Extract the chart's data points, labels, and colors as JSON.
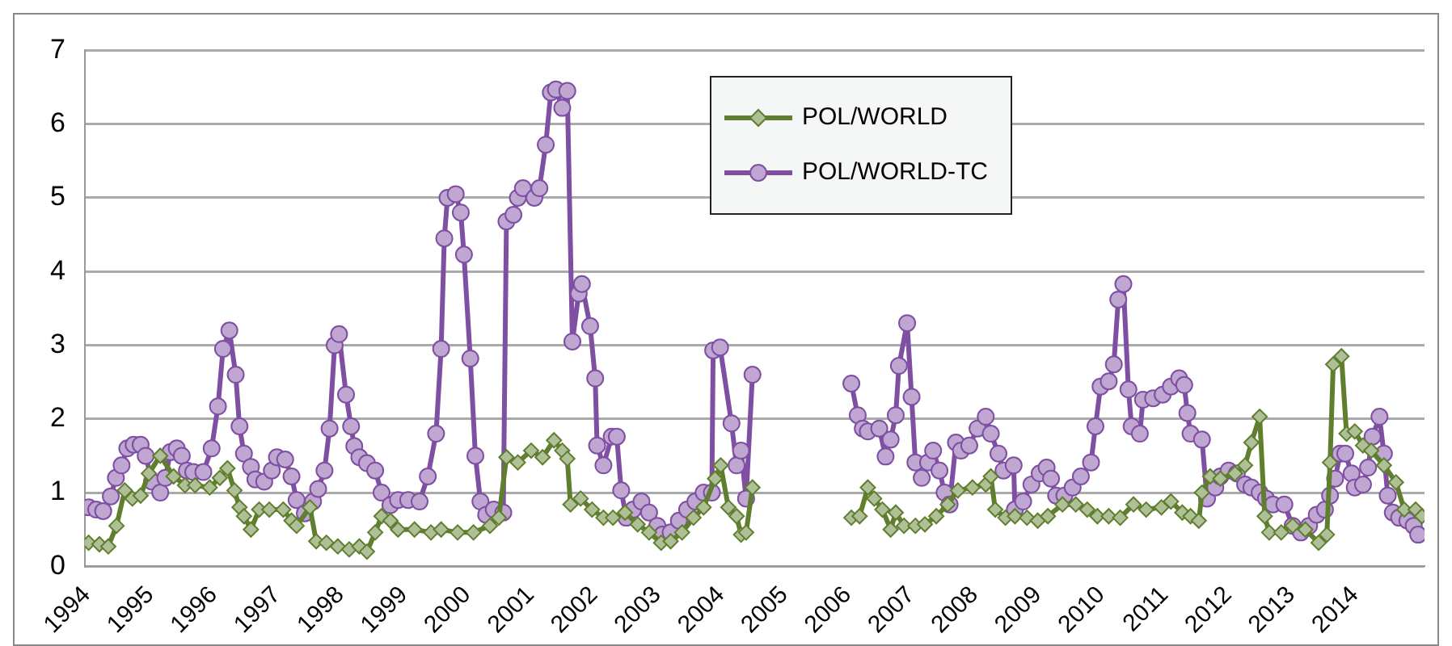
{
  "chart_data": {
    "type": "line",
    "xlim": [
      1993.97,
      2015.1
    ],
    "xticks": [
      1994,
      1995,
      1996,
      1997,
      1998,
      1999,
      2000,
      2001,
      2002,
      2003,
      2004,
      2005,
      2006,
      2007,
      2008,
      2009,
      2010,
      2011,
      2012,
      2013,
      2014
    ],
    "ylim": [
      0,
      7
    ],
    "yticks": [
      0,
      1,
      2,
      3,
      4,
      5,
      6,
      7
    ],
    "grid": "y",
    "legend": "top",
    "line_style": "solid",
    "series": [
      {
        "name": "POL/WORLD",
        "color": "#5f7f2e",
        "marker": "diamond",
        "x": [
          1994.03,
          1994.2,
          1994.34,
          1994.47,
          1994.6,
          1994.72,
          1994.85,
          1994.98,
          1995.16,
          1995.37,
          1995.55,
          1995.71,
          1995.94,
          1996.1,
          1996.22,
          1996.33,
          1996.41,
          1996.48,
          1996.59,
          1996.72,
          1996.88,
          1997.1,
          1997.23,
          1997.31,
          1997.52,
          1997.62,
          1997.78,
          1997.96,
          1998.14,
          1998.3,
          1998.42,
          1998.55,
          1998.65,
          1998.79,
          1998.91,
          1999.17,
          1999.43,
          1999.59,
          1999.85,
          2000.1,
          2000.36,
          2000.5,
          2000.62,
          2000.8,
          2001.01,
          2001.19,
          2001.37,
          2001.5,
          2001.58,
          2001.63,
          2001.79,
          2001.97,
          2002.15,
          2002.3,
          2002.49,
          2002.69,
          2002.87,
          2003.06,
          2003.21,
          2003.39,
          2003.57,
          2003.73,
          2003.91,
          2004.0,
          2004.12,
          2004.25,
          2004.32,
          2004.4,
          2004.5,
          2005.2,
          2006.06,
          2006.19,
          2006.32,
          2006.42,
          2006.55,
          2006.68,
          2006.76,
          2006.89,
          2007.07,
          2007.22,
          2007.4,
          2007.58,
          2007.74,
          2007.97,
          2008.18,
          2008.26,
          2008.33,
          2008.49,
          2008.64,
          2008.83,
          2009.0,
          2009.16,
          2009.39,
          2009.6,
          2009.78,
          2009.94,
          2010.12,
          2010.3,
          2010.51,
          2010.71,
          2010.95,
          2011.1,
          2011.28,
          2011.41,
          2011.54,
          2011.59,
          2011.72,
          2011.88,
          2012.11,
          2012.27,
          2012.37,
          2012.5,
          2012.58,
          2012.65,
          2012.84,
          2013.02,
          2013.22,
          2013.43,
          2013.56,
          2013.61,
          2013.66,
          2013.79,
          2013.87,
          2014.0,
          2014.13,
          2014.26,
          2014.46,
          2014.65,
          2014.78,
          2014.96,
          2015.06
        ],
        "values": [
          0.32,
          0.3,
          0.27,
          0.55,
          1.03,
          0.92,
          0.96,
          1.26,
          1.5,
          1.22,
          1.1,
          1.1,
          1.07,
          1.2,
          1.33,
          1.03,
          0.8,
          0.68,
          0.5,
          0.77,
          0.77,
          0.77,
          0.62,
          0.55,
          0.8,
          0.34,
          0.32,
          0.27,
          0.23,
          0.27,
          0.2,
          0.46,
          0.68,
          0.62,
          0.5,
          0.5,
          0.46,
          0.5,
          0.46,
          0.46,
          0.55,
          0.66,
          1.48,
          1.41,
          1.57,
          1.48,
          1.71,
          1.57,
          1.46,
          0.84,
          0.92,
          0.77,
          0.66,
          0.66,
          0.73,
          0.57,
          0.46,
          0.32,
          0.34,
          0.46,
          0.66,
          0.8,
          1.19,
          1.37,
          0.8,
          0.68,
          0.43,
          0.46,
          1.07,
          null,
          0.66,
          0.68,
          1.07,
          0.92,
          0.77,
          0.5,
          0.73,
          0.55,
          0.55,
          0.57,
          0.68,
          0.84,
          1.03,
          1.07,
          1.11,
          1.22,
          0.77,
          0.66,
          0.68,
          0.66,
          0.62,
          0.68,
          0.84,
          0.84,
          0.77,
          0.68,
          0.68,
          0.66,
          0.84,
          0.77,
          0.8,
          0.88,
          0.73,
          0.68,
          0.62,
          1.0,
          1.22,
          1.19,
          1.26,
          1.37,
          1.68,
          2.03,
          0.68,
          0.46,
          0.46,
          0.55,
          0.5,
          0.32,
          0.43,
          1.41,
          2.74,
          2.85,
          1.8,
          1.83,
          1.64,
          1.57,
          1.37,
          1.14,
          0.77,
          0.77,
          0.68
        ]
      },
      {
        "name": "POL/WORLD-TC",
        "color": "#7f4fa3",
        "marker": "circle",
        "x": [
          1994.03,
          1994.15,
          1994.26,
          1994.38,
          1994.46,
          1994.55,
          1994.64,
          1994.74,
          1994.85,
          1994.93,
          1995.03,
          1995.16,
          1995.24,
          1995.32,
          1995.42,
          1995.5,
          1995.58,
          1995.68,
          1995.84,
          1995.97,
          1996.07,
          1996.15,
          1996.25,
          1996.35,
          1996.41,
          1996.48,
          1996.59,
          1996.66,
          1996.8,
          1996.92,
          1997.0,
          1997.13,
          1997.23,
          1997.31,
          1997.44,
          1997.57,
          1997.65,
          1997.75,
          1997.83,
          1997.91,
          1997.98,
          1998.09,
          1998.17,
          1998.22,
          1998.3,
          1998.42,
          1998.55,
          1998.65,
          1998.79,
          1998.91,
          1999.07,
          1999.25,
          1999.38,
          1999.51,
          1999.59,
          1999.64,
          1999.69,
          1999.82,
          1999.9,
          1999.95,
          2000.05,
          2000.13,
          2000.21,
          2000.3,
          2000.42,
          2000.57,
          2000.62,
          2000.73,
          2000.8,
          2000.88,
          2001.06,
          2001.14,
          2001.24,
          2001.32,
          2001.4,
          2001.5,
          2001.58,
          2001.66,
          2001.76,
          2001.81,
          2001.94,
          2002.02,
          2002.05,
          2002.15,
          2002.28,
          2002.36,
          2002.43,
          2002.51,
          2002.62,
          2002.75,
          2002.87,
          2003.0,
          2003.08,
          2003.21,
          2003.34,
          2003.47,
          2003.6,
          2003.73,
          2003.86,
          2003.88,
          2003.99,
          2004.17,
          2004.25,
          2004.32,
          2004.4,
          2004.5,
          2005.2,
          2006.06,
          2006.16,
          2006.24,
          2006.32,
          2006.5,
          2006.6,
          2006.68,
          2006.76,
          2006.81,
          2006.94,
          2007.01,
          2007.07,
          2007.17,
          2007.27,
          2007.35,
          2007.45,
          2007.53,
          2007.61,
          2007.71,
          2007.79,
          2007.92,
          2008.05,
          2008.18,
          2008.26,
          2008.38,
          2008.46,
          2008.62,
          2008.64,
          2008.77,
          2008.9,
          2009.03,
          2009.14,
          2009.21,
          2009.29,
          2009.42,
          2009.55,
          2009.68,
          2009.84,
          2009.91,
          2009.99,
          2010.12,
          2010.2,
          2010.27,
          2010.35,
          2010.43,
          2010.48,
          2010.61,
          2010.66,
          2010.82,
          2010.97,
          2011.1,
          2011.23,
          2011.31,
          2011.36,
          2011.41,
          2011.59,
          2011.67,
          2011.8,
          2011.88,
          2012.01,
          2012.14,
          2012.27,
          2012.37,
          2012.5,
          2012.6,
          2012.71,
          2012.89,
          2013.02,
          2013.15,
          2013.28,
          2013.4,
          2013.53,
          2013.61,
          2013.69,
          2013.77,
          2013.85,
          2013.95,
          2014.0,
          2014.13,
          2014.21,
          2014.28,
          2014.39,
          2014.46,
          2014.52,
          2014.6,
          2014.7,
          2014.83,
          2014.93,
          2015.0
        ],
        "values": [
          0.8,
          0.77,
          0.75,
          0.95,
          1.2,
          1.37,
          1.6,
          1.65,
          1.65,
          1.5,
          1.15,
          1.0,
          1.2,
          1.55,
          1.6,
          1.5,
          1.3,
          1.28,
          1.28,
          1.6,
          2.17,
          2.95,
          3.2,
          2.6,
          1.9,
          1.53,
          1.35,
          1.18,
          1.15,
          1.3,
          1.48,
          1.45,
          1.22,
          0.9,
          0.72,
          0.88,
          1.05,
          1.3,
          1.87,
          3.0,
          3.15,
          2.33,
          1.9,
          1.63,
          1.48,
          1.4,
          1.3,
          1.0,
          0.83,
          0.9,
          0.9,
          0.88,
          1.22,
          1.8,
          2.95,
          4.45,
          5.0,
          5.05,
          4.8,
          4.23,
          2.82,
          1.5,
          0.88,
          0.7,
          0.77,
          0.73,
          4.68,
          4.77,
          5.0,
          5.13,
          5.0,
          5.13,
          5.72,
          6.43,
          6.47,
          6.22,
          6.45,
          3.05,
          3.7,
          3.83,
          3.26,
          2.55,
          1.64,
          1.37,
          1.76,
          1.76,
          1.03,
          0.66,
          0.77,
          0.88,
          0.73,
          0.55,
          0.43,
          0.46,
          0.62,
          0.77,
          0.88,
          1.0,
          1.0,
          2.93,
          2.97,
          1.94,
          1.37,
          1.57,
          0.92,
          2.6,
          null,
          2.48,
          2.05,
          1.87,
          1.83,
          1.87,
          1.49,
          1.72,
          2.05,
          2.72,
          3.3,
          2.3,
          1.41,
          1.2,
          1.41,
          1.57,
          1.3,
          1.0,
          0.84,
          1.68,
          1.57,
          1.64,
          1.87,
          2.03,
          1.8,
          1.53,
          1.3,
          1.37,
          0.77,
          0.88,
          1.11,
          1.26,
          1.34,
          1.19,
          0.96,
          0.96,
          1.07,
          1.22,
          1.41,
          1.9,
          2.44,
          2.51,
          2.74,
          3.62,
          3.83,
          2.4,
          1.9,
          1.8,
          2.26,
          2.28,
          2.33,
          2.44,
          2.55,
          2.46,
          2.08,
          1.8,
          1.72,
          0.92,
          1.07,
          1.22,
          1.3,
          1.26,
          1.11,
          1.07,
          1.0,
          0.92,
          0.84,
          0.84,
          0.55,
          0.46,
          0.55,
          0.7,
          0.77,
          0.96,
          1.19,
          1.53,
          1.53,
          1.26,
          1.07,
          1.11,
          1.34,
          1.76,
          2.03,
          1.53,
          0.96,
          0.73,
          0.66,
          0.62,
          0.55,
          0.43
        ]
      }
    ]
  }
}
